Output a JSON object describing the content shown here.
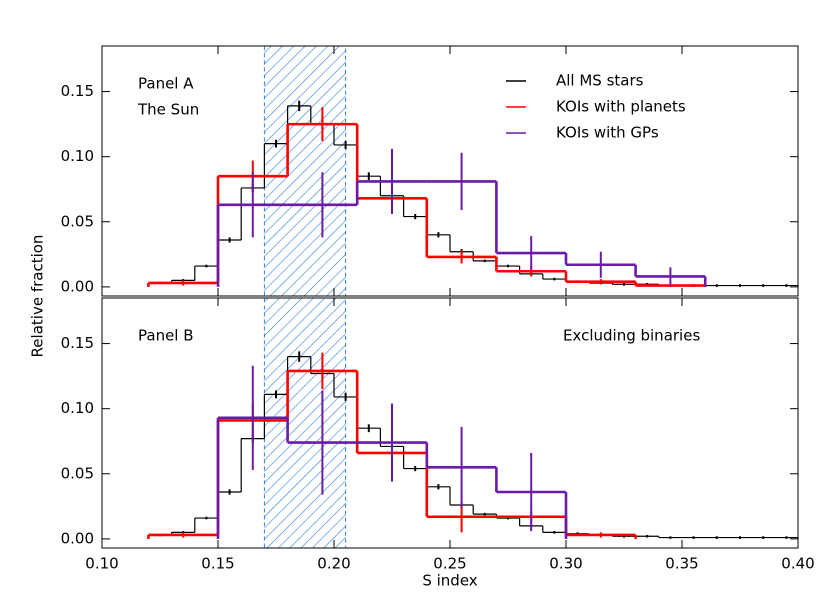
{
  "chart_data": [
    {
      "type": "histogram",
      "ylabel": "Relative fraction",
      "annotations": [
        {
          "text": "Panel A"
        },
        {
          "text": "The Sun",
          "color": "#2f7fe0"
        }
      ],
      "highlight": {
        "range": [
          0.17,
          0.205
        ],
        "color": "#2f7fe0",
        "hatched": true
      },
      "ylim": [
        -0.007,
        0.185
      ],
      "yticks": [
        {
          "value": 0,
          "label": "0.00"
        },
        0.05,
        {
          "value": 0.1,
          "label": "0.10"
        },
        0.15
      ],
      "legend": "upper right",
      "series": [
        {
          "name": "All MS stars",
          "color": "#000000",
          "bins": [
            0.12,
            0.13,
            0.14,
            0.15,
            0.16,
            0.17,
            0.18,
            0.19,
            0.2,
            0.21,
            0.22,
            0.23,
            0.24,
            0.25,
            0.26,
            0.27,
            0.28,
            0.29,
            0.3,
            0.31,
            0.32,
            0.33,
            0.34,
            0.35,
            0.36,
            0.37,
            0.38,
            0.39,
            0.4
          ],
          "values": [
            0.003,
            0.005,
            0.016,
            0.036,
            0.076,
            0.11,
            0.139,
            0.125,
            0.109,
            0.085,
            0.07,
            0.054,
            0.04,
            0.027,
            0.02,
            0.016,
            0.01,
            0.006,
            0.004,
            0.003,
            0.002,
            0.002,
            0.001,
            0.001,
            0.001,
            0.001,
            0.001,
            0.001
          ],
          "errors": [
            0.001,
            0.001,
            0.001,
            0.002,
            0.003,
            0.003,
            0.004,
            0.004,
            0.003,
            0.003,
            0.003,
            0.002,
            0.002,
            0.002,
            0.001,
            0.001,
            0.001,
            0.001,
            0.001,
            0.001,
            0.001,
            0.001,
            0.001,
            0.001,
            0.001,
            0.001,
            0.001,
            0.001
          ]
        },
        {
          "name": "KOIs with planets",
          "color": "#ff0000",
          "bins": [
            0.12,
            0.15,
            0.18,
            0.21,
            0.24,
            0.27,
            0.3,
            0.33,
            0.36
          ],
          "values": [
            0.003,
            0.085,
            0.125,
            0.068,
            0.023,
            0.012,
            0.004,
            0.001
          ],
          "errors": [
            0.002,
            0.012,
            0.013,
            0.009,
            0.005,
            0.004,
            0.002,
            0.001
          ]
        },
        {
          "name": "KOIs with GPs",
          "color": "#6a1aa8",
          "bins": [
            0.15,
            0.18,
            0.21,
            0.24,
            0.27,
            0.3,
            0.33,
            0.36
          ],
          "values": [
            0.063,
            0.063,
            0.081,
            0.081,
            0.026,
            0.017,
            0.008
          ],
          "errors": [
            0.025,
            0.025,
            0.025,
            0.022,
            0.013,
            0.01,
            0.007
          ]
        }
      ]
    },
    {
      "type": "histogram",
      "xlabel": "S index",
      "annotations": [
        {
          "text": "Panel B"
        },
        {
          "text": "Excluding binaries"
        }
      ],
      "highlight": {
        "range": [
          0.17,
          0.205
        ],
        "color": "#2f7fe0",
        "hatched": true
      },
      "xlim": [
        0.1,
        0.4
      ],
      "xticks": [
        {
          "value": 0.1,
          "label": "0.10"
        },
        0.15,
        {
          "value": 0.2,
          "label": "0.20"
        },
        0.25,
        {
          "value": 0.3,
          "label": "0.30"
        },
        0.35,
        {
          "value": 0.4,
          "label": "0.40"
        }
      ],
      "ylim": [
        -0.007,
        0.185
      ],
      "yticks": [
        {
          "value": 0,
          "label": "0.00"
        },
        0.05,
        {
          "value": 0.1,
          "label": "0.10"
        },
        0.15
      ],
      "series": [
        {
          "color": "#000000",
          "bins": [
            0.12,
            0.13,
            0.14,
            0.15,
            0.16,
            0.17,
            0.18,
            0.19,
            0.2,
            0.21,
            0.22,
            0.23,
            0.24,
            0.25,
            0.26,
            0.27,
            0.28,
            0.29,
            0.3,
            0.31,
            0.32,
            0.33,
            0.34,
            0.35,
            0.36,
            0.37,
            0.38,
            0.39,
            0.4
          ],
          "values": [
            0.003,
            0.005,
            0.016,
            0.036,
            0.077,
            0.111,
            0.14,
            0.127,
            0.109,
            0.085,
            0.071,
            0.054,
            0.04,
            0.026,
            0.019,
            0.016,
            0.01,
            0.005,
            0.004,
            0.003,
            0.002,
            0.002,
            0.001,
            0.001,
            0.001,
            0.001,
            0.001,
            0.001
          ],
          "errors": [
            0.001,
            0.001,
            0.001,
            0.002,
            0.003,
            0.003,
            0.004,
            0.004,
            0.003,
            0.003,
            0.003,
            0.002,
            0.002,
            0.002,
            0.001,
            0.001,
            0.001,
            0.001,
            0.001,
            0.001,
            0.001,
            0.001,
            0.001,
            0.001,
            0.001,
            0.001,
            0.001,
            0.001
          ]
        },
        {
          "color": "#ff0000",
          "bins": [
            0.12,
            0.15,
            0.18,
            0.21,
            0.24,
            0.27,
            0.3,
            0.33
          ],
          "values": [
            0.003,
            0.091,
            0.129,
            0.066,
            0.017,
            0.017,
            0.003
          ],
          "errors": [
            0.002,
            0.012,
            0.014,
            0.01,
            0.012,
            0.004,
            0.002
          ]
        },
        {
          "color": "#6a1aa8",
          "bins": [
            0.15,
            0.18,
            0.21,
            0.24,
            0.27,
            0.3
          ],
          "values": [
            0.093,
            0.074,
            0.074,
            0.055,
            0.036
          ],
          "errors": [
            0.04,
            0.04,
            0.03,
            0.031,
            0.03
          ]
        }
      ]
    }
  ]
}
